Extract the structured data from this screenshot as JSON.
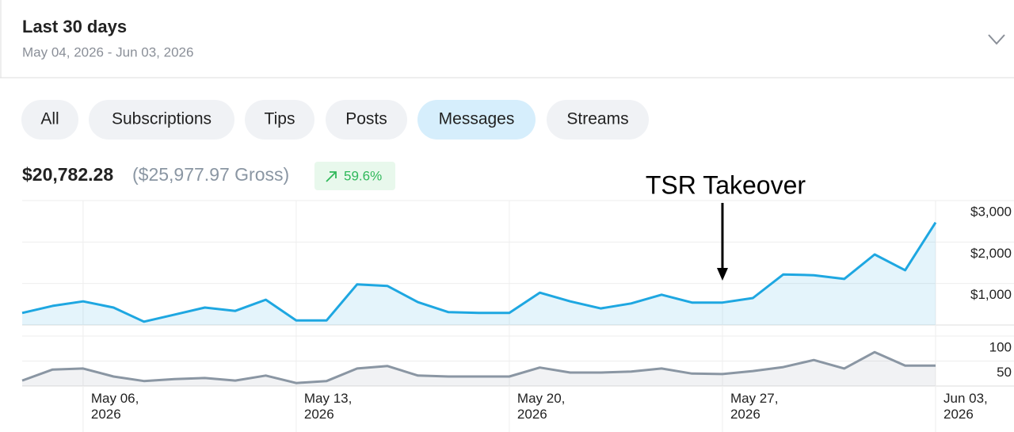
{
  "header": {
    "title": "Last 30 days",
    "date_range": "May 04, 2026 - Jun 03, 2026"
  },
  "tabs": [
    "All",
    "Subscriptions",
    "Tips",
    "Posts",
    "Messages",
    "Streams"
  ],
  "selected_tab": 4,
  "summary": {
    "net": "$20,782.28",
    "gross": "($25,977.97 Gross)",
    "change": "59.6%"
  },
  "annotation": "TSR Takeover",
  "chart_data": {
    "type": "line",
    "categories": [
      null,
      null,
      "May 06, 2026",
      null,
      null,
      null,
      null,
      null,
      null,
      "May 13, 2026",
      null,
      null,
      null,
      null,
      null,
      null,
      "May 20, 2026",
      null,
      null,
      null,
      null,
      null,
      null,
      "May 27, 2026",
      null,
      null,
      null,
      null,
      null,
      null,
      "Jun 03, 2026"
    ],
    "series": [
      {
        "color": "#1ea7e1",
        "values": [
          290,
          460,
          570,
          420,
          80,
          250,
          420,
          340,
          610,
          110,
          110,
          980,
          940,
          550,
          310,
          290,
          290,
          780,
          570,
          400,
          520,
          730,
          540,
          540,
          650,
          1220,
          1200,
          1110,
          1700,
          1320,
          2470
        ]
      },
      {
        "color": "#8a96a3",
        "axis": "y2",
        "values": [
          11,
          33,
          35,
          19,
          10,
          14,
          16,
          11,
          21,
          6,
          10,
          35,
          40,
          21,
          19,
          19,
          19,
          37,
          27,
          27,
          29,
          35,
          25,
          24,
          30,
          38,
          52,
          35,
          68,
          41,
          41
        ]
      }
    ],
    "ylim": [
      0,
      3000
    ],
    "yticks": [
      {
        "value": 1000,
        "label": "$1,000"
      },
      {
        "value": 2000,
        "label": "$2,000"
      },
      {
        "value": 3000,
        "label": "$3,000"
      }
    ],
    "y2lim": [
      0,
      100
    ],
    "y2ticks": [
      50,
      100
    ],
    "grid": true
  }
}
